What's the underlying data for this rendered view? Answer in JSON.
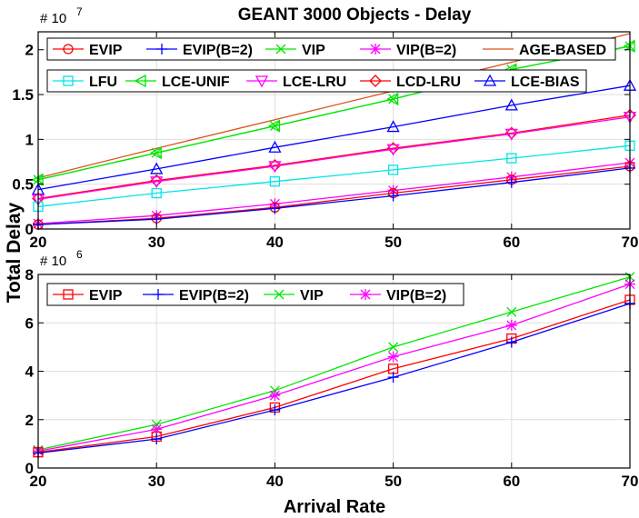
{
  "figure": {
    "title": "GEANT 3000 Objects - Delay",
    "ylabel": "Total Delay",
    "xlabel": "Arrival Rate"
  },
  "chart_data": [
    {
      "type": "line",
      "id": "top",
      "exponent_label": "# 10",
      "exponent_power": "7",
      "x": [
        20,
        30,
        40,
        50,
        60,
        70
      ],
      "xlim": [
        20,
        70
      ],
      "ylim": [
        0,
        22000000
      ],
      "xticks": [
        "20",
        "30",
        "40",
        "50",
        "60",
        "70"
      ],
      "yticks": [
        {
          "value": 0,
          "label": "0"
        },
        {
          "value": 5000000,
          "label": "0.5"
        },
        {
          "value": 10000000,
          "label": "1"
        },
        {
          "value": 15000000,
          "label": "1.5"
        },
        {
          "value": 20000000,
          "label": "2"
        }
      ],
      "grid": true,
      "legend_rows": [
        [
          "EVIP",
          "EVIP(B=2)",
          "VIP",
          "VIP(B=2)",
          "AGE-BASED"
        ],
        [
          "LFU",
          "LCE-UNIF",
          "LCE-LRU",
          "LCD-LRU",
          "LCE-BIAS"
        ]
      ],
      "series": [
        {
          "name": "AGE-BASED",
          "color": "#D95319",
          "marker": "none",
          "values": [
            5700000,
            9000000,
            12200000,
            15400000,
            18600000,
            21800000
          ]
        },
        {
          "name": "VIP",
          "color": "#00E600",
          "marker": "x",
          "values": [
            5500000,
            8500000,
            11500000,
            14500000,
            17800000,
            20400000
          ]
        },
        {
          "name": "LCE-UNIF",
          "color": "#00E600",
          "marker": "triangle-left",
          "values": [
            5500000,
            8500000,
            11500000,
            14500000,
            17800000,
            20400000
          ]
        },
        {
          "name": "LCE-BIAS",
          "color": "#0000FF",
          "marker": "triangle-up",
          "values": [
            4400000,
            6700000,
            9100000,
            11400000,
            13800000,
            16000000
          ]
        },
        {
          "name": "LCD-LRU",
          "color": "#FF0000",
          "marker": "diamond",
          "values": [
            3400000,
            5400000,
            7100000,
            9000000,
            10700000,
            12700000
          ]
        },
        {
          "name": "LCE-LRU",
          "color": "#FF00FF",
          "marker": "triangle-down",
          "values": [
            3300000,
            5300000,
            7000000,
            8900000,
            10600000,
            12500000
          ]
        },
        {
          "name": "LFU",
          "color": "#00E5E5",
          "marker": "square",
          "values": [
            2500000,
            4000000,
            5300000,
            6600000,
            7900000,
            9300000
          ]
        },
        {
          "name": "VIP(B=2)",
          "color": "#FF00FF",
          "marker": "star",
          "values": [
            600000,
            1500000,
            2800000,
            4300000,
            5800000,
            7400000
          ]
        },
        {
          "name": "EVIP",
          "color": "#FF0000",
          "marker": "circle",
          "values": [
            500000,
            1200000,
            2400000,
            4000000,
            5500000,
            7000000
          ]
        },
        {
          "name": "EVIP(B=2)",
          "color": "#0000FF",
          "marker": "plus",
          "values": [
            500000,
            1100000,
            2300000,
            3700000,
            5200000,
            6800000
          ]
        }
      ]
    },
    {
      "type": "line",
      "id": "bottom",
      "exponent_label": "# 10",
      "exponent_power": "6",
      "x": [
        20,
        30,
        40,
        50,
        60,
        70
      ],
      "xlim": [
        20,
        70
      ],
      "ylim": [
        0,
        8000000
      ],
      "xticks": [
        "20",
        "30",
        "40",
        "50",
        "60",
        "70"
      ],
      "yticks": [
        {
          "value": 0,
          "label": "0"
        },
        {
          "value": 2000000,
          "label": "2"
        },
        {
          "value": 4000000,
          "label": "4"
        },
        {
          "value": 6000000,
          "label": "6"
        },
        {
          "value": 8000000,
          "label": "8"
        }
      ],
      "grid": true,
      "legend_rows": [
        [
          "EVIP",
          "EVIP(B=2)",
          "VIP",
          "VIP(B=2)"
        ]
      ],
      "series": [
        {
          "name": "VIP",
          "color": "#00E600",
          "marker": "x",
          "values": [
            750000,
            1800000,
            3200000,
            5000000,
            6450000,
            7900000
          ]
        },
        {
          "name": "VIP(B=2)",
          "color": "#FF00FF",
          "marker": "star",
          "values": [
            700000,
            1600000,
            3000000,
            4600000,
            5900000,
            7600000
          ]
        },
        {
          "name": "EVIP",
          "color": "#FF0000",
          "marker": "square",
          "values": [
            650000,
            1300000,
            2500000,
            4100000,
            5350000,
            6950000
          ]
        },
        {
          "name": "EVIP(B=2)",
          "color": "#0000FF",
          "marker": "plus",
          "values": [
            620000,
            1200000,
            2400000,
            3750000,
            5200000,
            6800000
          ]
        }
      ]
    }
  ]
}
